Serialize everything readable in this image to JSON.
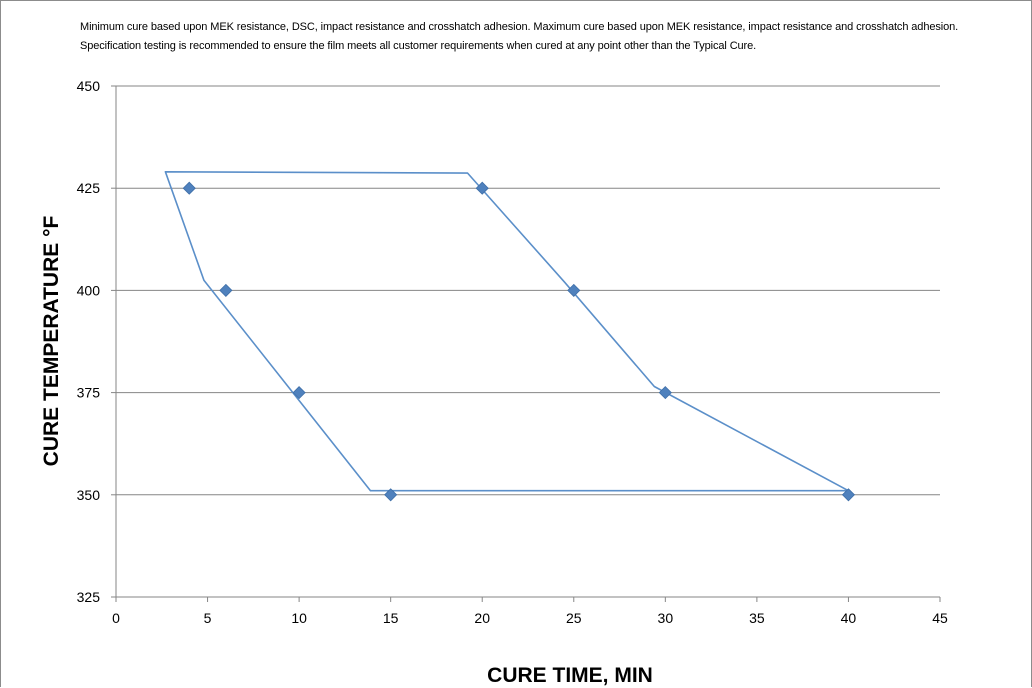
{
  "chart_data": {
    "type": "scatter",
    "note": "Minimum cure based upon MEK resistance, DSC, impact resistance and crosshatch adhesion.  Maximum cure based upon MEK resistance, impact resistance and  crosshatch adhesion.  Specification testing is recommended to ensure the film meets all customer requirements when cured at any point other than the Typical Cure.",
    "xlabel": "CURE TIME, MIN",
    "ylabel": "CURE TEMPERATURE °F",
    "xlim": [
      0,
      45
    ],
    "ylim": [
      325,
      450
    ],
    "xticks": [
      0,
      5,
      10,
      15,
      20,
      25,
      30,
      35,
      40,
      45
    ],
    "yticks": [
      325,
      350,
      375,
      400,
      425,
      450
    ],
    "grid": "horizontal",
    "colors": {
      "series": "#4f81bd",
      "line": "#5b8fc9",
      "grid": "#868686"
    },
    "series": [
      {
        "marker": "diamond",
        "points": [
          {
            "x": 4,
            "y": 425
          },
          {
            "x": 6,
            "y": 400
          },
          {
            "x": 10,
            "y": 375
          },
          {
            "x": 15,
            "y": 350
          },
          {
            "x": 20,
            "y": 425
          },
          {
            "x": 25,
            "y": 400
          },
          {
            "x": 30,
            "y": 375
          },
          {
            "x": 40,
            "y": 350
          }
        ]
      }
    ],
    "cure_window": [
      {
        "x": 2.7,
        "y": 429
      },
      {
        "x": 19.2,
        "y": 428.7
      },
      {
        "x": 24.5,
        "y": 402
      },
      {
        "x": 29.4,
        "y": 376.5
      },
      {
        "x": 40,
        "y": 351
      },
      {
        "x": 13.9,
        "y": 351
      },
      {
        "x": 4.8,
        "y": 402.5
      }
    ]
  }
}
